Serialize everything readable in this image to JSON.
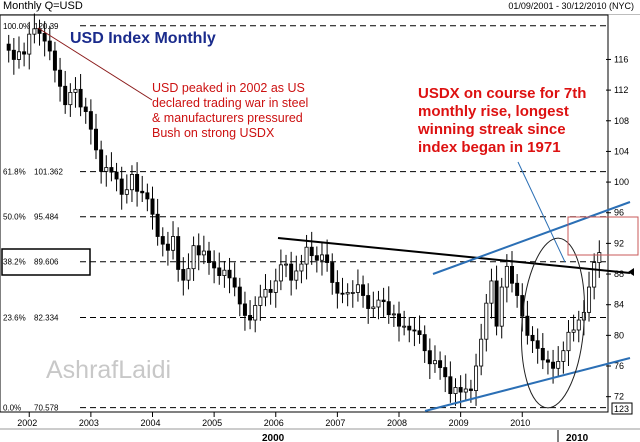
{
  "header": {
    "symbol": "Monthly Q=USD",
    "date_range": "01/09/2001 - 30/12/2010 (NYC)"
  },
  "chart_data": {
    "type": "candlestick",
    "title": "USD Index Monthly",
    "watermark": "AshrafLaidi",
    "y_axis": {
      "ticks": [
        72,
        76,
        80,
        84,
        88,
        92,
        96,
        100,
        104,
        108,
        112,
        116
      ],
      "ylim": [
        70.0,
        121.8
      ],
      "side": "right",
      "last_value_label": "123"
    },
    "x_axis": {
      "year_labels": [
        "2002",
        "2003",
        "2004",
        "2005",
        "2006",
        "2007",
        "2008",
        "2009",
        "2010"
      ],
      "secondary_labels": [
        "2000",
        "2010"
      ],
      "start": "2001-09",
      "end": "2010-12"
    },
    "fib_levels": [
      {
        "pct": "100.0%",
        "value": "120.39",
        "y": 120.39
      },
      {
        "pct": "61.8%",
        "value": "101.362",
        "y": 101.362
      },
      {
        "pct": "50.0%",
        "value": "95.484",
        "y": 95.484
      },
      {
        "pct": "38.2%",
        "value": "89.606",
        "y": 89.606
      },
      {
        "pct": "23.6%",
        "value": "82.334",
        "y": 82.334
      },
      {
        "pct": "0.0%",
        "value": "70.578",
        "y": 70.578
      }
    ],
    "annotations": [
      {
        "text": "USD peaked in 2002 as US declared trading war in steel & manufacturers pressured Bush on strong USDX",
        "color": "#cc1111"
      },
      {
        "text": "USDX on course for 7th monthly rise, longest winning streak since index began in 1971",
        "color": "#dd1111"
      }
    ],
    "closes": [
      117.2,
      116.0,
      117.0,
      116.7,
      119.3,
      120.0,
      119.4,
      118.4,
      117.1,
      114.6,
      112.5,
      110.1,
      111.7,
      112.1,
      109.8,
      109.2,
      106.9,
      104.2,
      101.4,
      101.9,
      101.3,
      100.4,
      98.4,
      99.0,
      101.0,
      98.8,
      98.6,
      97.8,
      95.8,
      92.9,
      91.9,
      91.1,
      92.9,
      88.6,
      87.2,
      88.7,
      91.7,
      90.5,
      91.0,
      89.5,
      88.8,
      87.8,
      88.5,
      87.5,
      86.3,
      84.1,
      82.6,
      82.0,
      83.9,
      85.0,
      86.0,
      85.6,
      87.1,
      89.2,
      89.3,
      87.2,
      88.4,
      89.3,
      91.5,
      90.4,
      89.8,
      90.5,
      89.5,
      86.9,
      85.5,
      85.4,
      85.6,
      85.6,
      86.6,
      85.2,
      83.5,
      83.7,
      84.6,
      84.4,
      82.7,
      82.8,
      81.2,
      81.2,
      80.7,
      80.6,
      80.1,
      78.0,
      76.3,
      76.7,
      75.8,
      74.6,
      72.4,
      73.2,
      72.6,
      73.0,
      72.8,
      76.0,
      79.5,
      84.2,
      87.1,
      81.2,
      86.3,
      89.0,
      86.8,
      85.2,
      82.5,
      80.0,
      79.3,
      78.3,
      76.8,
      76.5,
      75.7,
      76.6,
      78.0,
      80.4,
      80.7,
      82.0,
      83.0,
      86.3,
      89.5,
      90.8
    ]
  }
}
